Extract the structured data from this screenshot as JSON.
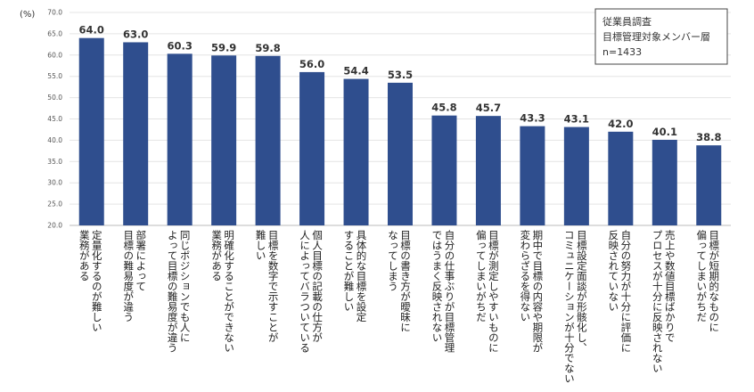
{
  "chart_data": {
    "type": "bar",
    "unit_label": "(%)",
    "ylim": [
      20.0,
      70.0
    ],
    "yticks": [
      "20.0",
      "25.0",
      "30.0",
      "35.0",
      "40.0",
      "45.0",
      "50.0",
      "55.0",
      "60.0",
      "65.0",
      "70.0"
    ],
    "grid": true,
    "bar_color": "#2f4e8e",
    "categories": [
      [
        "定量化するのが難しい",
        "業務がある"
      ],
      [
        "部署によって",
        "目標の難易度が違う"
      ],
      [
        "同じポジションでも人に",
        "よって目標の難易度が違う"
      ],
      [
        "明確化することができない",
        "業務がある"
      ],
      [
        "目標を数字で示すことが",
        "難しい"
      ],
      [
        "個人目標の記載の仕方が",
        "人によってバラついている"
      ],
      [
        "具体的な目標を設定",
        "することが難しい"
      ],
      [
        "目標の書き方が曖昧に",
        "なってしまう"
      ],
      [
        "自分の仕事ぶりが目標管理",
        "ではうまく反映されない"
      ],
      [
        "目標が測定しやすいものに",
        "偏ってしまいがちだ"
      ],
      [
        "期中で目標の内容や期限が",
        "変わらざるを得ない"
      ],
      [
        "目標設定面談が形骸化し、",
        "コミュニケーションが十分でない"
      ],
      [
        "自分の努力が十分に評価に",
        "反映されていない"
      ],
      [
        "売上や数値目標ばかりで",
        "プロセスが十分に反映されない"
      ],
      [
        "目標が短期的なものに",
        "偏ってしまいがちだ"
      ]
    ],
    "values": [
      64.0,
      63.0,
      60.3,
      59.9,
      59.8,
      56.0,
      54.4,
      53.5,
      45.8,
      45.7,
      43.3,
      43.1,
      42.0,
      40.1,
      38.8
    ],
    "value_labels": [
      "64.0",
      "63.0",
      "60.3",
      "59.9",
      "59.8",
      "56.0",
      "54.4",
      "53.5",
      "45.8",
      "45.7",
      "43.3",
      "43.1",
      "42.0",
      "40.1",
      "38.8"
    ]
  },
  "note": {
    "lines": [
      "従業員調査",
      "目標管理対象メンバー層",
      "n=1433"
    ]
  }
}
